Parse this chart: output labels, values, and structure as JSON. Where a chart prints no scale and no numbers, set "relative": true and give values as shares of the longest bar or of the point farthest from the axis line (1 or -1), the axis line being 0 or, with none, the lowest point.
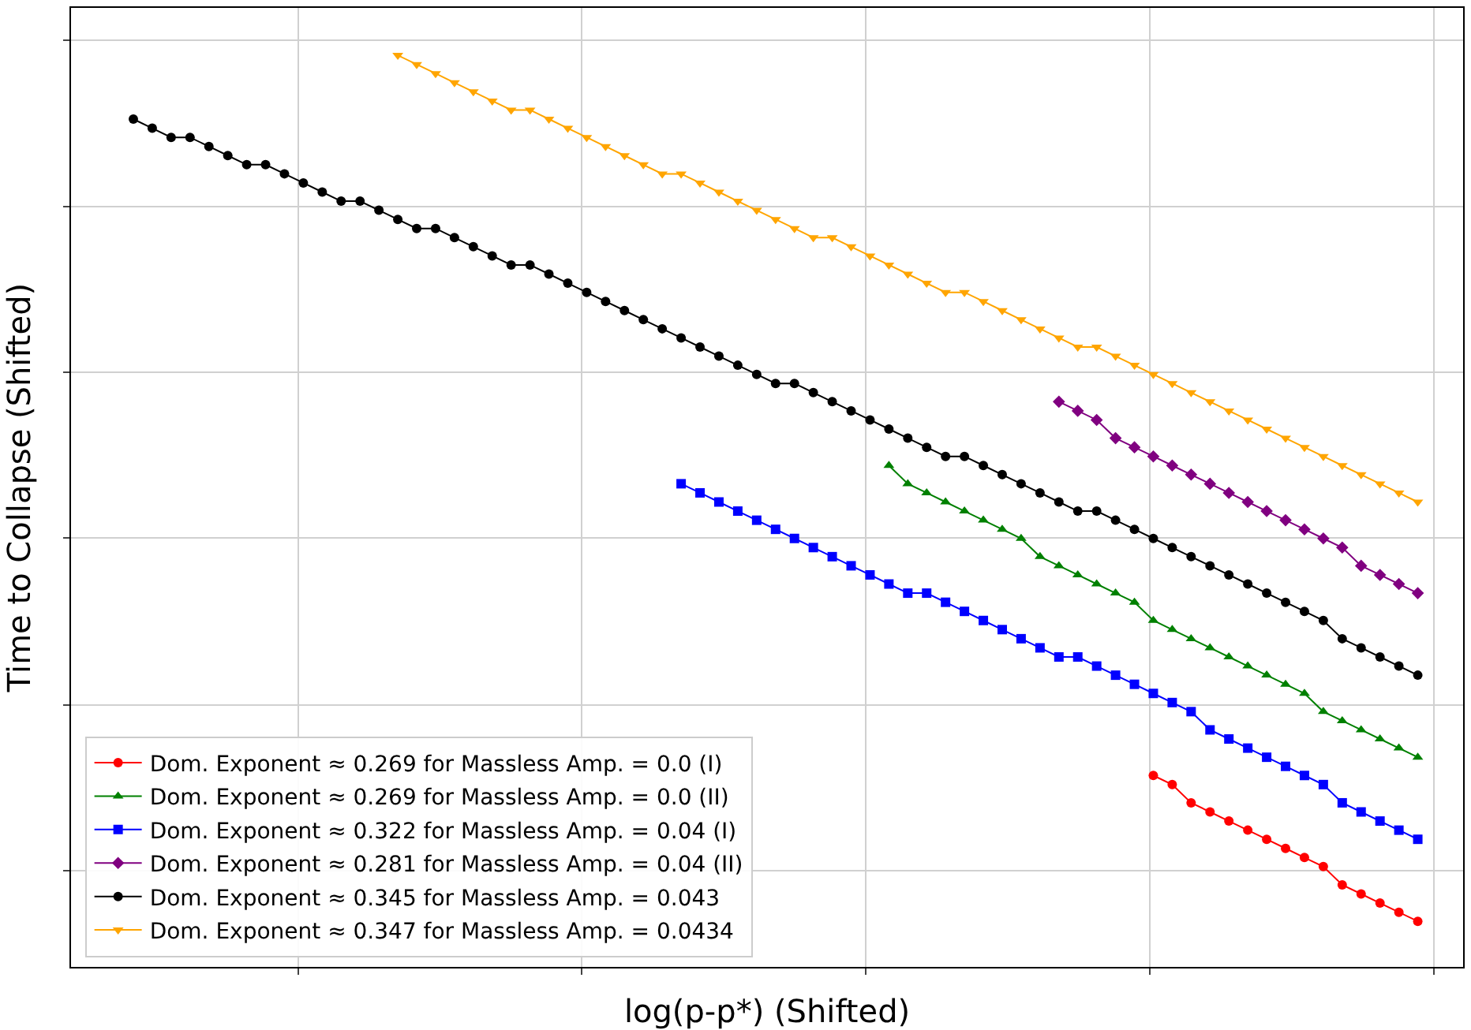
{
  "chart_data": {
    "type": "line",
    "relative": true,
    "xlabel": "log(p-p*) (Shifted)",
    "ylabel": "Time to Collapse (Shifted)",
    "grid": true,
    "legend": "bottom left",
    "categories": [
      null,
      null,
      null,
      null,
      null,
      null,
      null,
      null,
      null,
      null,
      null,
      null,
      null,
      null,
      null,
      null,
      null,
      null,
      null,
      null,
      null,
      null,
      null,
      null,
      null,
      null,
      null,
      null,
      null,
      null,
      null,
      null,
      null,
      null,
      null,
      null,
      null,
      null,
      null,
      null,
      null,
      null,
      null,
      null,
      null,
      null,
      null,
      null,
      null,
      null,
      null,
      null,
      null,
      null,
      null,
      null,
      null,
      null,
      null,
      null,
      null,
      null,
      null,
      null,
      null,
      null,
      null,
      null,
      null
    ],
    "series": [
      {
        "name": "Dom. Exponent ≈ 0.269 for Massless Amp. = 0.0 (I)",
        "color": "#ff0000",
        "marker": "circle",
        "values": [
          null,
          null,
          null,
          null,
          null,
          null,
          null,
          null,
          null,
          null,
          null,
          null,
          null,
          null,
          null,
          null,
          null,
          null,
          null,
          null,
          null,
          null,
          null,
          null,
          null,
          null,
          null,
          null,
          null,
          null,
          null,
          null,
          null,
          null,
          null,
          null,
          null,
          null,
          null,
          null,
          null,
          null,
          null,
          null,
          null,
          null,
          null,
          null,
          null,
          null,
          null,
          null,
          null,
          null,
          0.21,
          0.2,
          0.18,
          0.17,
          0.16,
          0.15,
          0.14,
          0.13,
          0.12,
          0.11,
          0.09,
          0.08,
          0.07,
          0.06,
          0.05
        ]
      },
      {
        "name": "Dom. Exponent ≈ 0.269 for Massless Amp. = 0.0 (II)",
        "color": "#008000",
        "marker": "triangle",
        "values": [
          null,
          null,
          null,
          null,
          null,
          null,
          null,
          null,
          null,
          null,
          null,
          null,
          null,
          null,
          null,
          null,
          null,
          null,
          null,
          null,
          null,
          null,
          null,
          null,
          null,
          null,
          null,
          null,
          null,
          null,
          null,
          null,
          null,
          null,
          null,
          null,
          null,
          null,
          null,
          null,
          0.55,
          0.53,
          0.52,
          0.51,
          0.5,
          0.49,
          0.48,
          0.47,
          0.45,
          0.44,
          0.43,
          0.42,
          0.41,
          0.4,
          0.38,
          0.37,
          0.36,
          0.35,
          0.34,
          0.33,
          0.32,
          0.31,
          0.3,
          0.28,
          0.27,
          0.26,
          0.25,
          0.24,
          0.23
        ]
      },
      {
        "name": "Dom. Exponent ≈ 0.322 for Massless Amp. = 0.04 (I)",
        "color": "#0000ff",
        "marker": "square",
        "values": [
          null,
          null,
          null,
          null,
          null,
          null,
          null,
          null,
          null,
          null,
          null,
          null,
          null,
          null,
          null,
          null,
          null,
          null,
          null,
          null,
          null,
          null,
          null,
          null,
          null,
          null,
          null,
          null,
          null,
          0.53,
          0.52,
          0.51,
          0.5,
          0.49,
          0.48,
          0.47,
          0.46,
          0.45,
          0.44,
          0.43,
          0.42,
          0.41,
          0.41,
          0.4,
          0.39,
          0.38,
          0.37,
          0.36,
          0.35,
          0.34,
          0.34,
          0.33,
          0.32,
          0.31,
          0.3,
          0.29,
          0.28,
          0.26,
          0.25,
          0.24,
          0.23,
          0.22,
          0.21,
          0.2,
          0.18,
          0.17,
          0.16,
          0.15,
          0.14
        ]
      },
      {
        "name": "Dom. Exponent ≈ 0.281 for Massless Amp. = 0.04 (II)",
        "color": "#800080",
        "marker": "diamond",
        "values": [
          null,
          null,
          null,
          null,
          null,
          null,
          null,
          null,
          null,
          null,
          null,
          null,
          null,
          null,
          null,
          null,
          null,
          null,
          null,
          null,
          null,
          null,
          null,
          null,
          null,
          null,
          null,
          null,
          null,
          null,
          null,
          null,
          null,
          null,
          null,
          null,
          null,
          null,
          null,
          null,
          null,
          null,
          null,
          null,
          null,
          null,
          null,
          null,
          null,
          0.62,
          0.61,
          0.6,
          0.58,
          0.57,
          0.56,
          0.55,
          0.54,
          0.53,
          0.52,
          0.51,
          0.5,
          0.49,
          0.48,
          0.47,
          0.46,
          0.44,
          0.43,
          0.42,
          0.41
        ]
      },
      {
        "name": "Dom. Exponent ≈ 0.345 for Massless Amp. = 0.043",
        "color": "#000000",
        "marker": "circle",
        "values": [
          0.93,
          0.92,
          0.91,
          0.91,
          0.9,
          0.89,
          0.88,
          0.88,
          0.87,
          0.86,
          0.85,
          0.84,
          0.84,
          0.83,
          0.82,
          0.81,
          0.81,
          0.8,
          0.79,
          0.78,
          0.77,
          0.77,
          0.76,
          0.75,
          0.74,
          0.73,
          0.72,
          0.71,
          0.7,
          0.69,
          0.68,
          0.67,
          0.66,
          0.65,
          0.64,
          0.64,
          0.63,
          0.62,
          0.61,
          0.6,
          0.59,
          0.58,
          0.57,
          0.56,
          0.56,
          0.55,
          0.54,
          0.53,
          0.52,
          0.51,
          0.5,
          0.5,
          0.49,
          0.48,
          0.47,
          0.46,
          0.45,
          0.44,
          0.43,
          0.42,
          0.41,
          0.4,
          0.39,
          0.38,
          0.36,
          0.35,
          0.34,
          0.33,
          0.32
        ]
      },
      {
        "name": "Dom. Exponent ≈ 0.347 for Massless Amp. = 0.0434",
        "color": "#ffa500",
        "marker": "triangle-down",
        "values": [
          null,
          null,
          null,
          null,
          null,
          null,
          null,
          null,
          null,
          null,
          null,
          null,
          null,
          null,
          1.0,
          0.99,
          0.98,
          0.97,
          0.96,
          0.95,
          0.94,
          0.94,
          0.93,
          0.92,
          0.91,
          0.9,
          0.89,
          0.88,
          0.87,
          0.87,
          0.86,
          0.85,
          0.84,
          0.83,
          0.82,
          0.81,
          0.8,
          0.8,
          0.79,
          0.78,
          0.77,
          0.76,
          0.75,
          0.74,
          0.74,
          0.73,
          0.72,
          0.71,
          0.7,
          0.69,
          0.68,
          0.68,
          0.67,
          0.66,
          0.65,
          0.64,
          0.63,
          0.62,
          0.61,
          0.6,
          0.59,
          0.58,
          0.57,
          0.56,
          0.55,
          0.54,
          0.53,
          0.52,
          0.51
        ]
      }
    ]
  }
}
